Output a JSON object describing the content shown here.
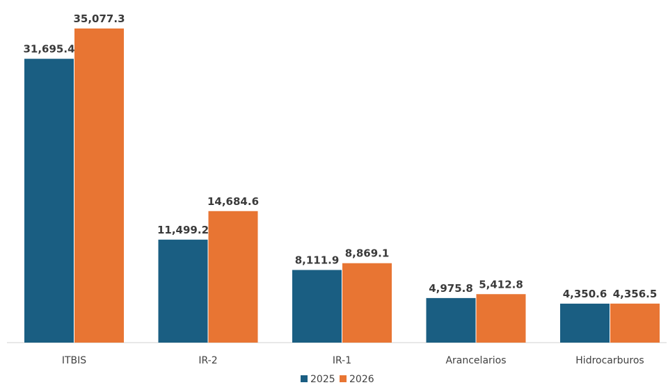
{
  "chart_data": {
    "type": "bar",
    "categories": [
      "ITBIS",
      "IR-2",
      "IR-1",
      "Arancelarios",
      "Hidrocarburos"
    ],
    "series": [
      {
        "name": "2025",
        "color": "#1a5e82",
        "values": [
          31695.4,
          11499.2,
          8111.9,
          4975.8,
          4350.6
        ],
        "labels": [
          "31,695.4",
          "11,499.2",
          "8,111.9",
          "4,975.8",
          "4,350.6"
        ]
      },
      {
        "name": "2026",
        "color": "#e87533",
        "values": [
          35077.3,
          14684.6,
          8869.1,
          5412.8,
          4356.5
        ],
        "labels": [
          "35,077.3",
          "14,684.6",
          "8,869.1",
          "5,412.8",
          "4,356.5"
        ]
      }
    ],
    "ylim": [
      0,
      35077.3
    ],
    "grid": false,
    "legend": "bottom-center"
  }
}
